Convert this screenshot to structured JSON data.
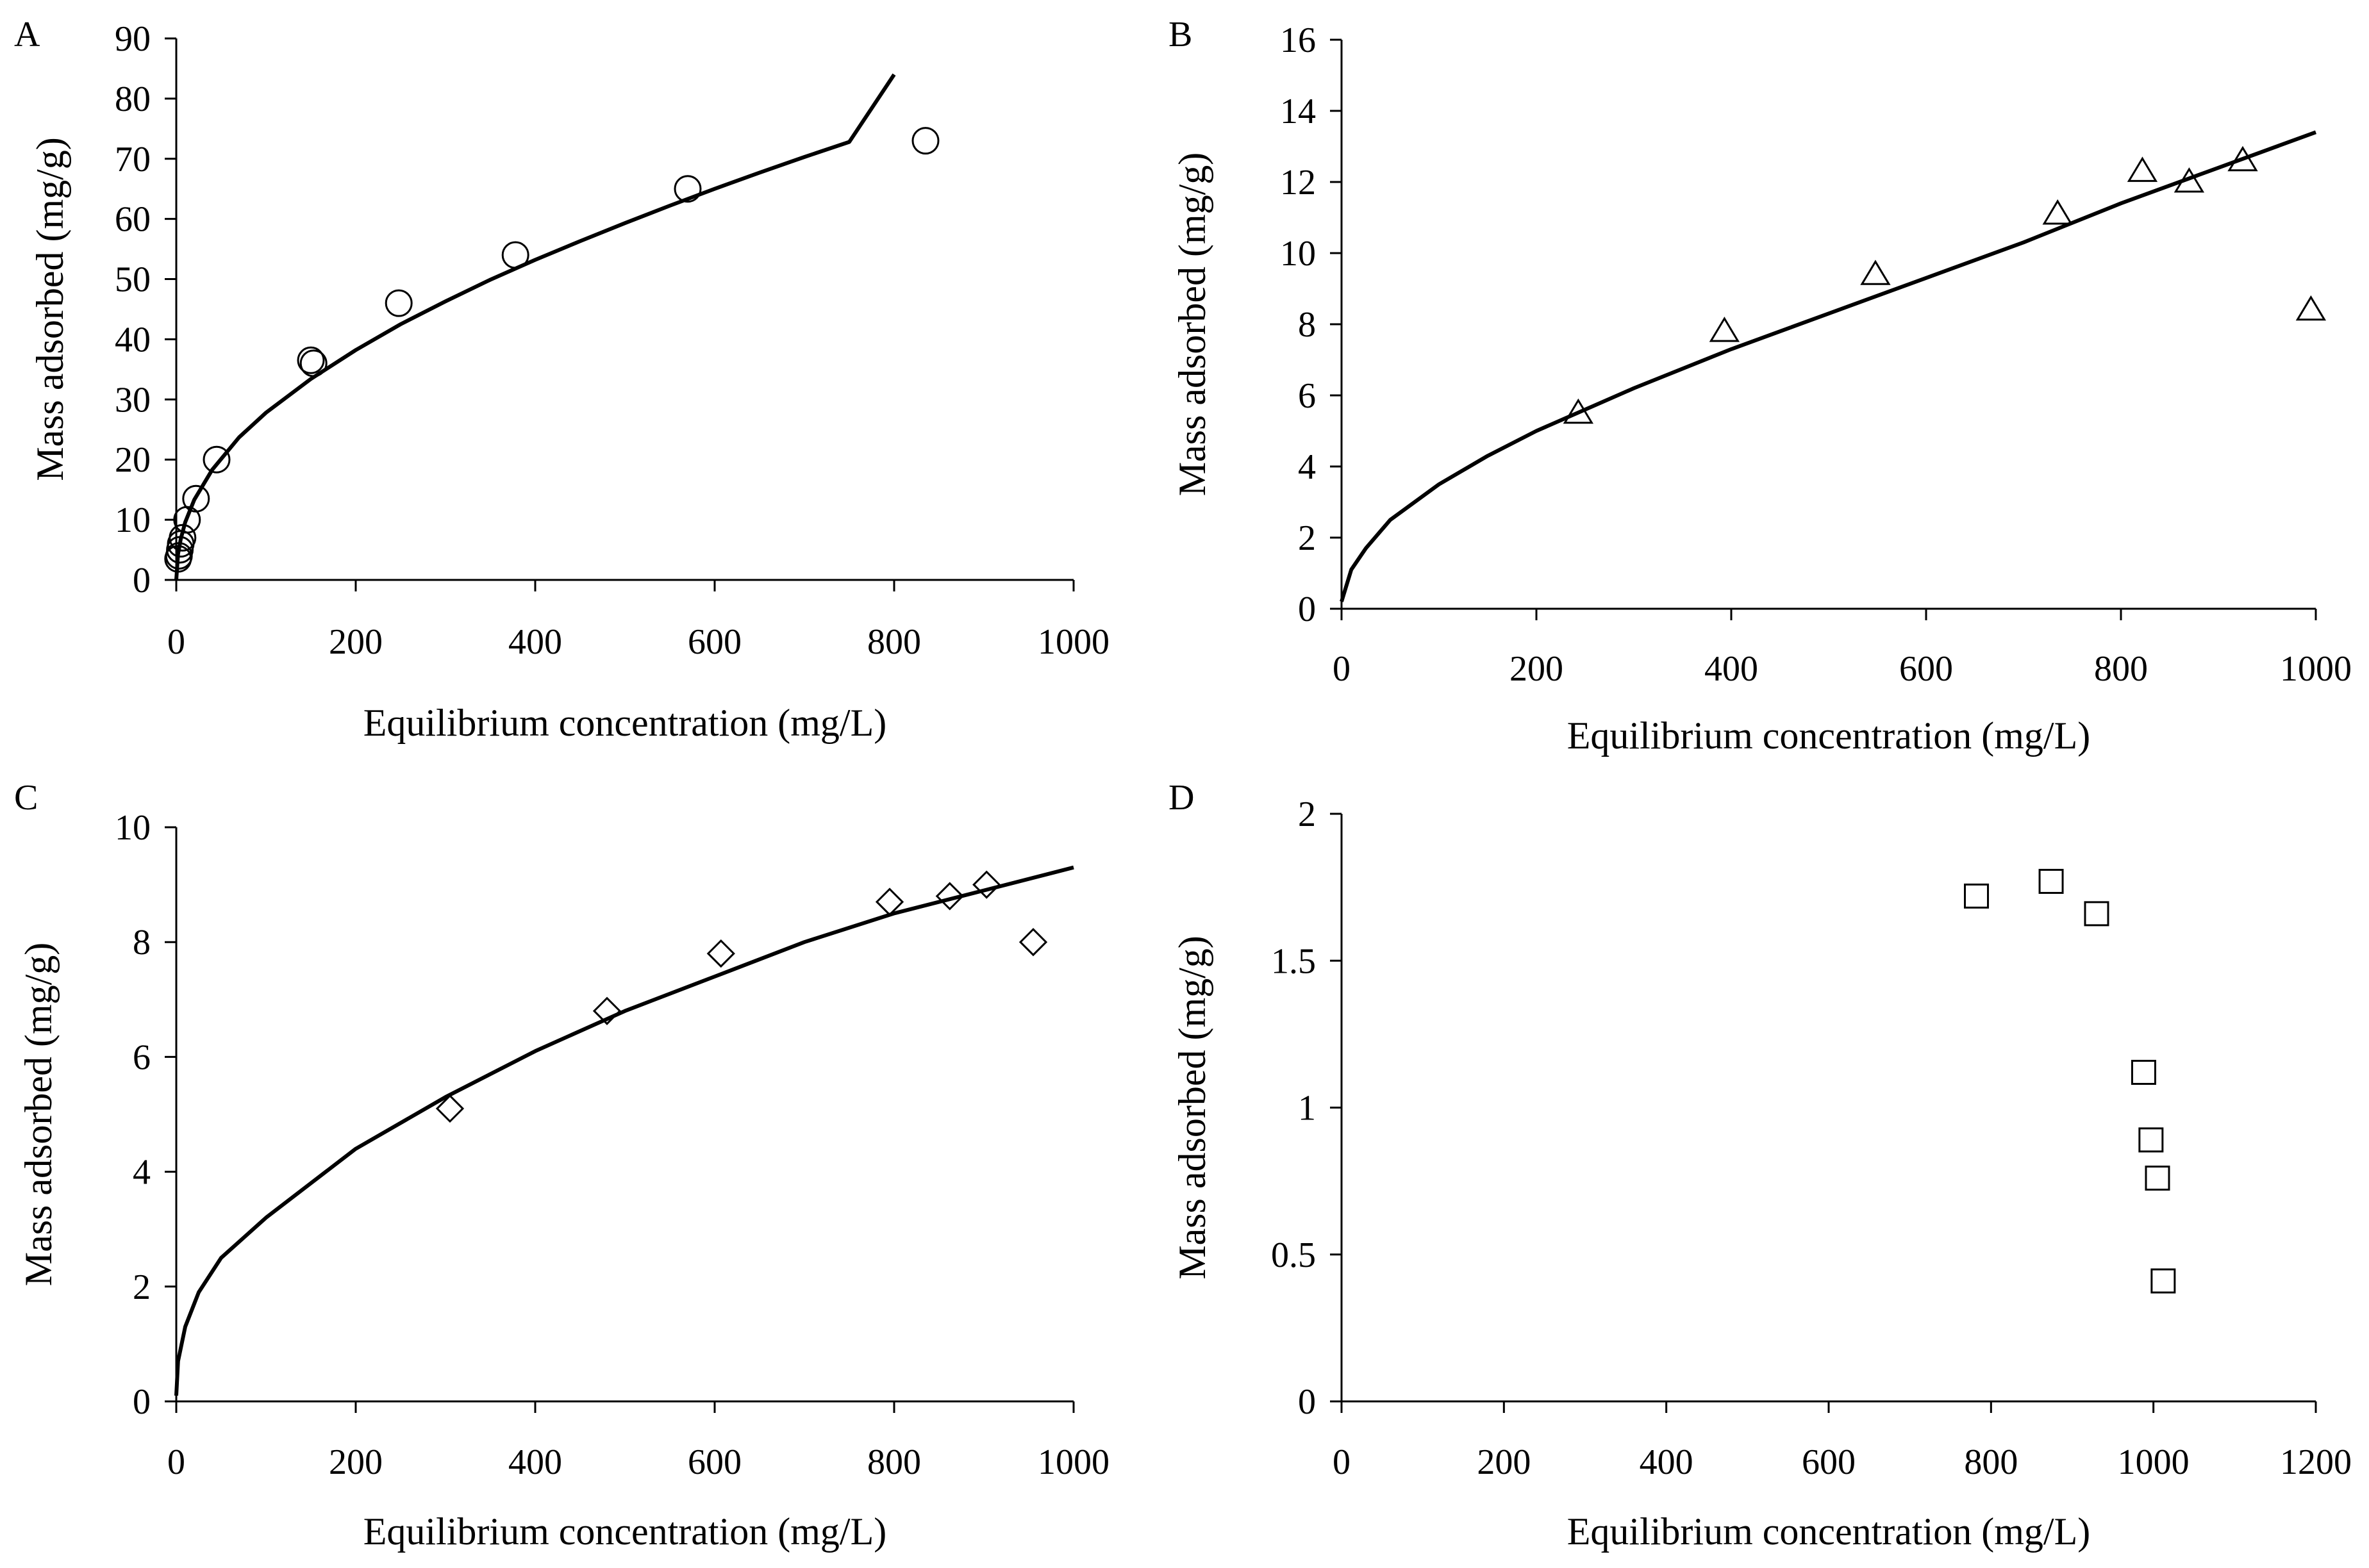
{
  "chart_data": [
    {
      "panel_label": "A",
      "type": "scatter",
      "xlabel": "Equilibrium concentration (mg/L)",
      "ylabel": "Mass  adsorbed (mg/g)",
      "xlim": [
        0,
        1000
      ],
      "ylim": [
        0,
        90
      ],
      "xticks": [
        0,
        200,
        400,
        600,
        800,
        1000
      ],
      "yticks": [
        0,
        10,
        20,
        30,
        40,
        50,
        60,
        70,
        80,
        90
      ],
      "marker": "circle",
      "grid": false,
      "legend": "none",
      "points": [
        [
          2,
          3.5
        ],
        [
          3,
          4
        ],
        [
          4,
          5
        ],
        [
          5,
          6
        ],
        [
          7,
          7
        ],
        [
          12,
          10
        ],
        [
          22,
          13.5
        ],
        [
          45,
          20
        ],
        [
          150,
          36.5
        ],
        [
          153,
          36
        ],
        [
          248,
          46
        ],
        [
          378,
          54
        ],
        [
          570,
          65
        ],
        [
          835,
          73
        ]
      ],
      "fit_curve": [
        [
          0,
          0
        ],
        [
          2,
          4.3
        ],
        [
          5,
          6.8
        ],
        [
          10,
          9.6
        ],
        [
          20,
          13.3
        ],
        [
          40,
          18.3
        ],
        [
          70,
          23.7
        ],
        [
          100,
          27.8
        ],
        [
          150,
          33.4
        ],
        [
          200,
          38.2
        ],
        [
          250,
          42.5
        ],
        [
          300,
          46.3
        ],
        [
          350,
          49.9
        ],
        [
          400,
          53.2
        ],
        [
          450,
          56.3
        ],
        [
          500,
          59.3
        ],
        [
          550,
          62.2
        ],
        [
          600,
          65.0
        ],
        [
          650,
          67.7
        ],
        [
          700,
          70.3
        ],
        [
          750,
          72.8
        ],
        [
          800,
          84.0
        ]
      ]
    },
    {
      "panel_label": "B",
      "type": "scatter",
      "xlabel": "Equilibrium concentration (mg/L)",
      "ylabel": "Mass  adsorbed (mg/g)",
      "xlim": [
        0,
        1000
      ],
      "ylim": [
        0,
        16
      ],
      "xticks": [
        0,
        200,
        400,
        600,
        800,
        1000
      ],
      "yticks": [
        0,
        2,
        4,
        6,
        8,
        10,
        12,
        14,
        16
      ],
      "marker": "triangle",
      "grid": false,
      "legend": "none",
      "points": [
        [
          243,
          5.5
        ],
        [
          393,
          7.8
        ],
        [
          548,
          9.4
        ],
        [
          735,
          11.1
        ],
        [
          822,
          12.3
        ],
        [
          870,
          12.0
        ],
        [
          925,
          12.6
        ],
        [
          995,
          8.4
        ]
      ],
      "fit_curve": [
        [
          0,
          0.2
        ],
        [
          10,
          1.1
        ],
        [
          25,
          1.7
        ],
        [
          50,
          2.5
        ],
        [
          100,
          3.5
        ],
        [
          150,
          4.3
        ],
        [
          200,
          5.0
        ],
        [
          300,
          6.2
        ],
        [
          400,
          7.3
        ],
        [
          500,
          8.3
        ],
        [
          600,
          9.3
        ],
        [
          700,
          10.3
        ],
        [
          800,
          11.4
        ],
        [
          900,
          12.4
        ],
        [
          1000,
          13.4
        ]
      ]
    },
    {
      "panel_label": "C",
      "type": "scatter",
      "xlabel": "Equilibrium concentration (mg/L)",
      "ylabel": "Mass  adsorbed (mg/g)",
      "xlim": [
        0,
        1000
      ],
      "ylim": [
        0,
        10
      ],
      "xticks": [
        0,
        200,
        400,
        600,
        800,
        1000
      ],
      "yticks": [
        0,
        2,
        4,
        6,
        8,
        10
      ],
      "marker": "diamond",
      "grid": false,
      "legend": "none",
      "points": [
        [
          305,
          5.1
        ],
        [
          480,
          6.8
        ],
        [
          607,
          7.8
        ],
        [
          795,
          8.7
        ],
        [
          862,
          8.8
        ],
        [
          903,
          9.0
        ],
        [
          955,
          8.0
        ]
      ],
      "fit_curve": [
        [
          0,
          0.1
        ],
        [
          2,
          0.7
        ],
        [
          10,
          1.3
        ],
        [
          25,
          1.9
        ],
        [
          50,
          2.5
        ],
        [
          100,
          3.2
        ],
        [
          150,
          3.8
        ],
        [
          200,
          4.4
        ],
        [
          300,
          5.3
        ],
        [
          400,
          6.1
        ],
        [
          500,
          6.8
        ],
        [
          600,
          7.4
        ],
        [
          700,
          8.0
        ],
        [
          800,
          8.5
        ],
        [
          900,
          8.9
        ],
        [
          1000,
          9.3
        ]
      ]
    },
    {
      "panel_label": "D",
      "type": "scatter",
      "xlabel": "Equilibrium concentration (mg/L)",
      "ylabel": "Mass  adsorbed (mg/g)",
      "xlim": [
        0,
        1200
      ],
      "ylim": [
        0,
        2
      ],
      "xticks": [
        0,
        200,
        400,
        600,
        800,
        1000,
        1200
      ],
      "yticks": [
        0,
        0.5,
        1,
        1.5,
        2
      ],
      "ytick_labels": [
        "0",
        "0.5",
        "1",
        "1.5",
        "2"
      ],
      "marker": "square",
      "grid": false,
      "legend": "none",
      "points": [
        [
          782,
          1.72
        ],
        [
          874,
          1.77
        ],
        [
          930,
          1.66
        ],
        [
          988,
          1.12
        ],
        [
          997,
          0.89
        ],
        [
          1005,
          0.76
        ],
        [
          1012,
          0.41
        ]
      ]
    }
  ]
}
